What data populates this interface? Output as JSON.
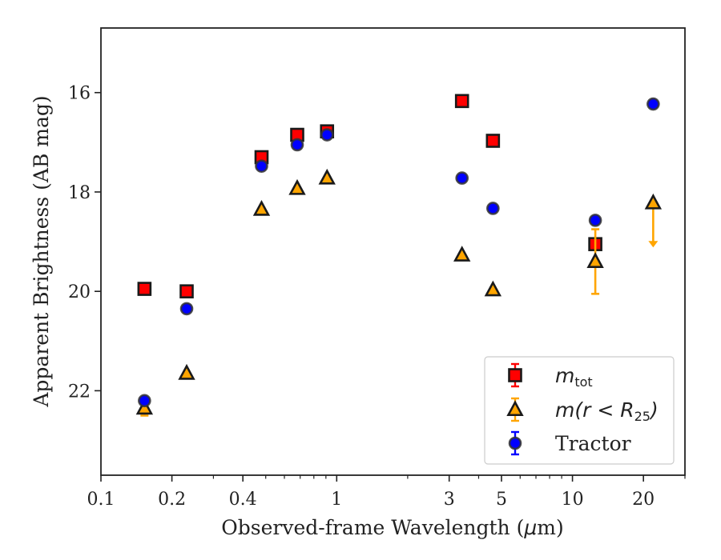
{
  "chart_data": {
    "type": "scatter",
    "xscale": "log",
    "yaxis_inverted": true,
    "xlim": [
      0.1,
      30
    ],
    "ylim": [
      23.7,
      14.7
    ],
    "xlabel_text": "Observed-frame Wavelength (",
    "xlabel_mu": "μ",
    "xlabel_rest": "m)",
    "ylabel": "Apparent Brightness (AB mag)",
    "x_ticks": [
      {
        "value": 0.1,
        "label": "0.1"
      },
      {
        "value": 0.2,
        "label": "0.2"
      },
      {
        "value": 0.4,
        "label": "0.4"
      },
      {
        "value": 1,
        "label": "1"
      },
      {
        "value": 3,
        "label": "3"
      },
      {
        "value": 5,
        "label": "5"
      },
      {
        "value": 10,
        "label": "10"
      },
      {
        "value": 20,
        "label": "20"
      }
    ],
    "y_ticks": [
      {
        "value": 16,
        "label": "16"
      },
      {
        "value": 18,
        "label": "18"
      },
      {
        "value": 20,
        "label": "20"
      },
      {
        "value": 22,
        "label": "22"
      }
    ],
    "legend_position": "lower right",
    "grid": false,
    "series": [
      {
        "key": "mtot",
        "legend_main": "m",
        "legend_sub": "tot",
        "marker": "square",
        "color": "#ff0000",
        "edge": "#1a1a1a",
        "error_color": "#ff0000",
        "points": [
          {
            "x": 0.153,
            "y": 19.95
          },
          {
            "x": 0.231,
            "y": 20.0
          },
          {
            "x": 0.48,
            "y": 17.3
          },
          {
            "x": 0.68,
            "y": 16.85
          },
          {
            "x": 0.91,
            "y": 16.78
          },
          {
            "x": 3.4,
            "y": 16.17
          },
          {
            "x": 4.6,
            "y": 16.97
          },
          {
            "x": 12.5,
            "y": 19.05
          }
        ]
      },
      {
        "key": "mr25",
        "legend_main": "m",
        "legend_paren": "(r < R",
        "legend_sub": "25",
        "legend_close": ")",
        "marker": "triangle",
        "color": "#ffa500",
        "edge": "#1a1a1a",
        "error_color": "#ffa500",
        "points": [
          {
            "x": 0.153,
            "y": 22.35,
            "yerr": 0.15
          },
          {
            "x": 0.231,
            "y": 21.65
          },
          {
            "x": 0.48,
            "y": 18.35
          },
          {
            "x": 0.68,
            "y": 17.93
          },
          {
            "x": 0.91,
            "y": 17.72
          },
          {
            "x": 3.4,
            "y": 19.27
          },
          {
            "x": 4.6,
            "y": 19.97
          },
          {
            "x": 12.5,
            "y": 19.4,
            "yerr_low": 0.65,
            "yerr_high": 0.65
          },
          {
            "x": 22.0,
            "y": 18.22,
            "upper_limit": true,
            "limit_to": 19.1
          }
        ]
      },
      {
        "key": "tractor",
        "legend_main": "Tractor",
        "marker": "circle",
        "color": "#0000ff",
        "edge": "#333333",
        "error_color": "#0000ff",
        "points": [
          {
            "x": 0.153,
            "y": 22.2
          },
          {
            "x": 0.231,
            "y": 20.35
          },
          {
            "x": 0.48,
            "y": 17.48
          },
          {
            "x": 0.68,
            "y": 17.05
          },
          {
            "x": 0.91,
            "y": 16.85
          },
          {
            "x": 3.4,
            "y": 17.72
          },
          {
            "x": 4.6,
            "y": 18.33
          },
          {
            "x": 12.5,
            "y": 18.57
          },
          {
            "x": 22.0,
            "y": 16.23
          }
        ]
      }
    ]
  }
}
